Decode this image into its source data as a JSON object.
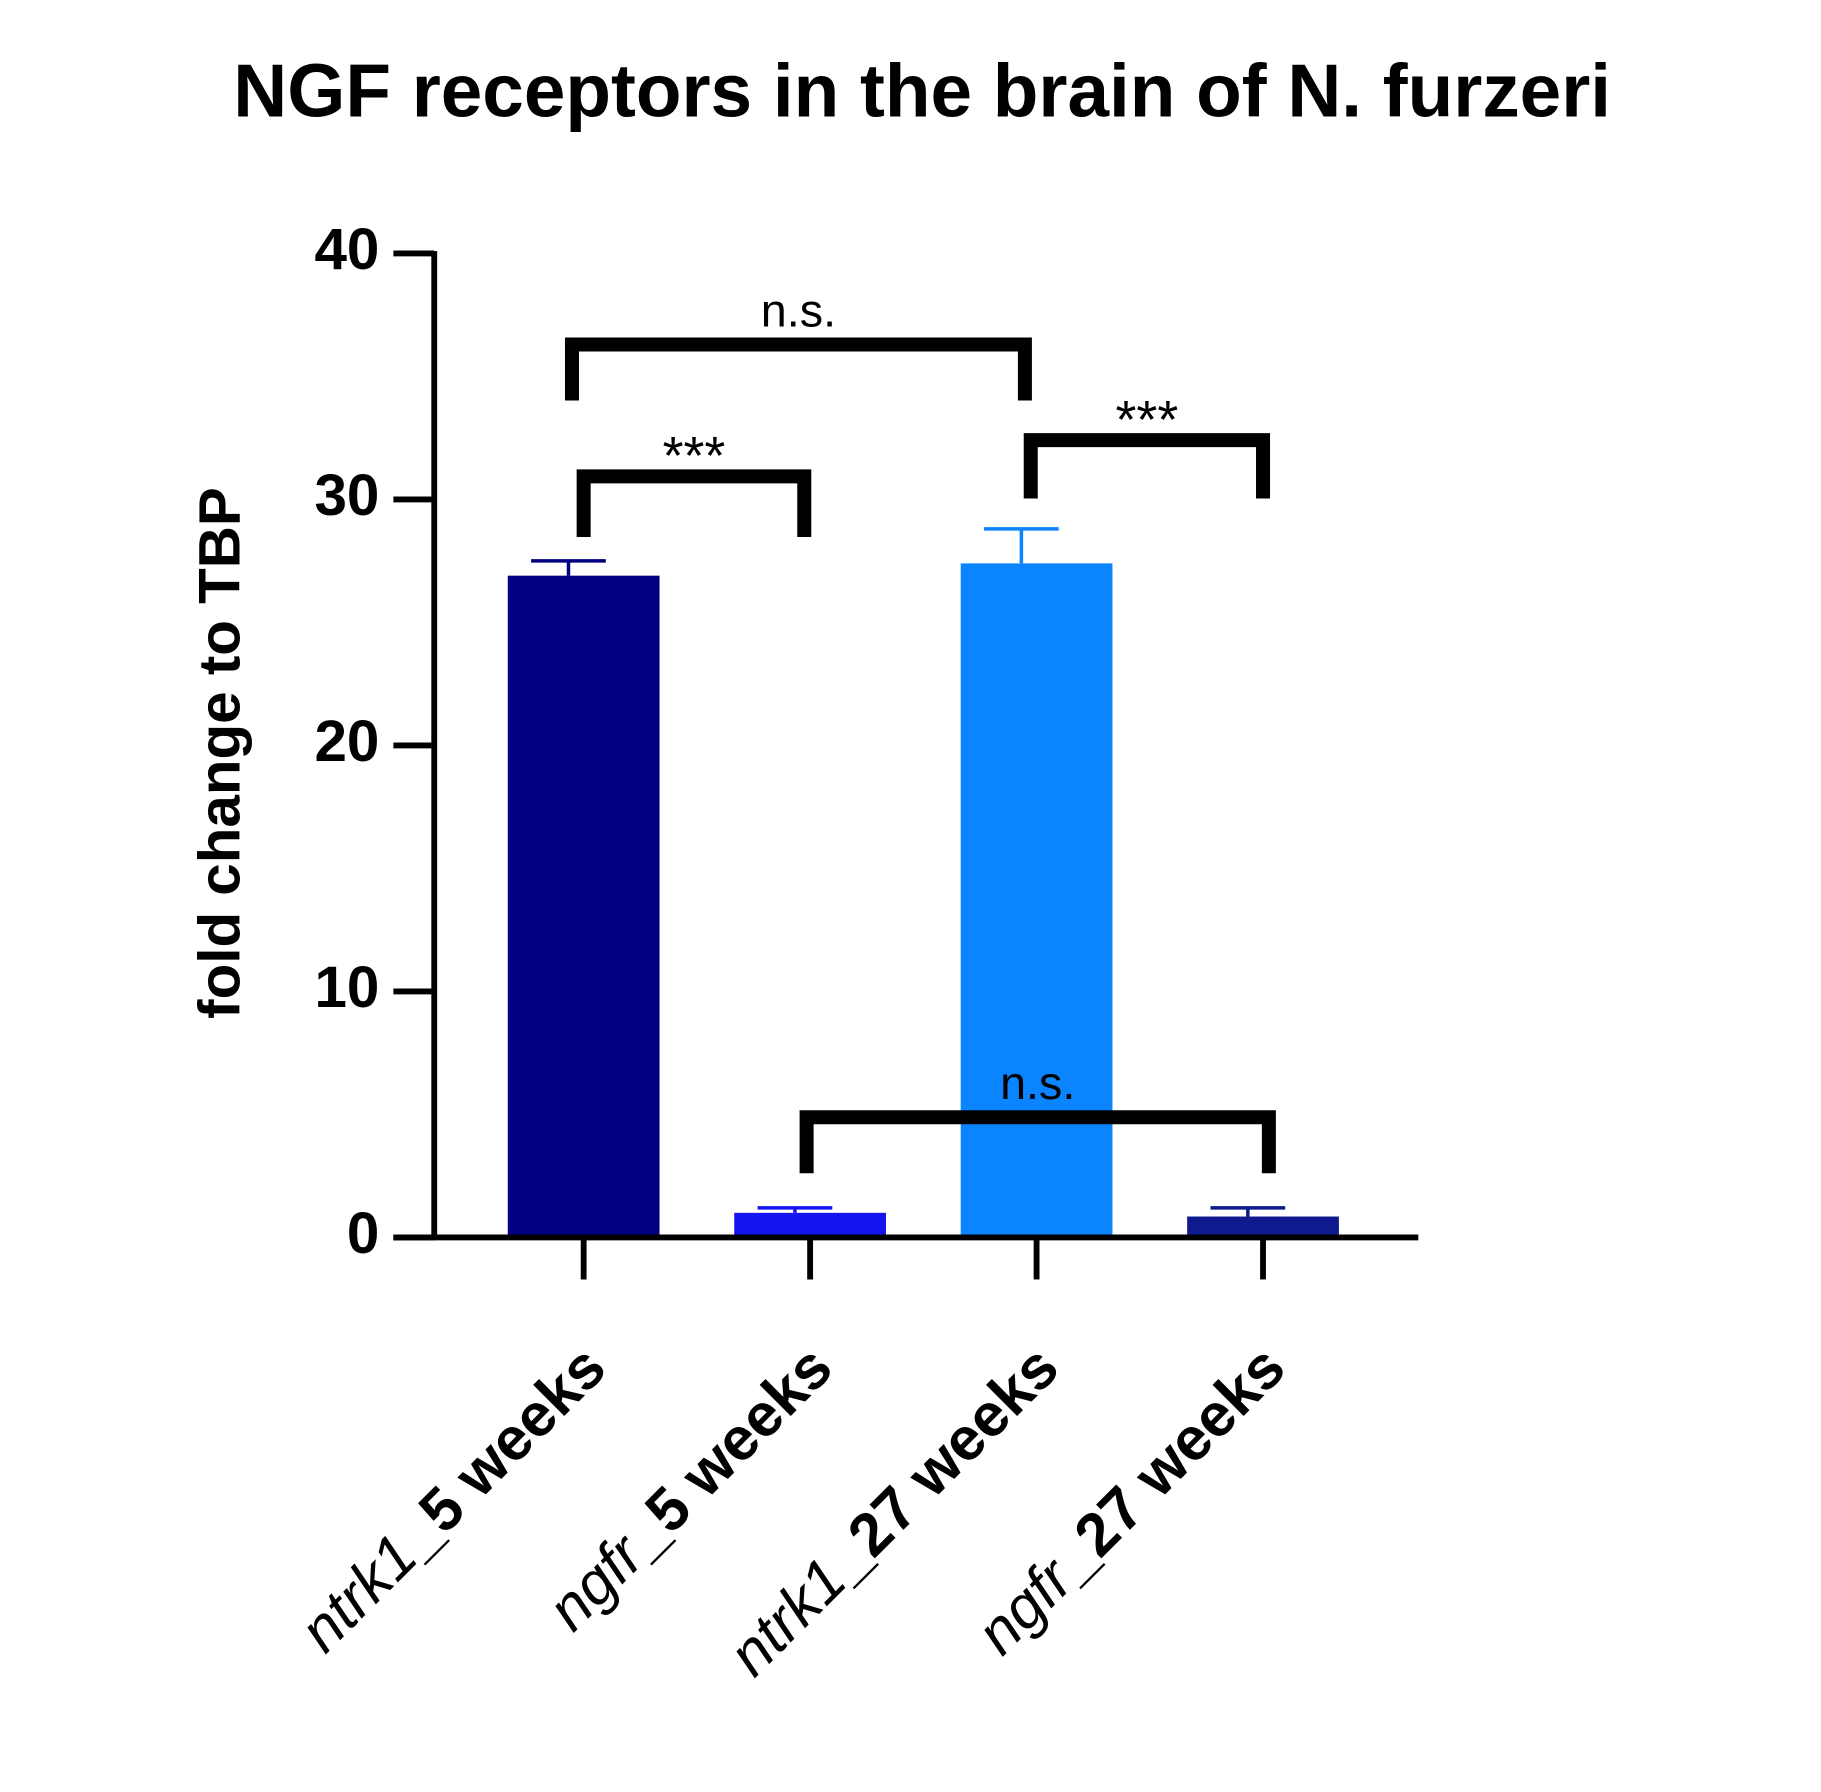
{
  "chart_data": {
    "type": "bar",
    "title": "NGF receptors in the brain of N. furzeri",
    "y_label": "fold change to TBP",
    "categories": [
      "ntrk1_5 weeks",
      "ngfr_5 weeks",
      "ntrk1_27 weeks",
      "ngfr_27 weeks"
    ],
    "values": [
      26.9,
      1.0,
      27.4,
      0.85
    ],
    "errors": [
      0.6,
      0.2,
      1.4,
      0.35
    ],
    "colors": [
      "#000080",
      "#1414f0",
      "#0a84ff",
      "#0f1a8f"
    ],
    "ylim": [
      0,
      40
    ],
    "yticks": [
      0,
      10,
      20,
      30,
      40
    ],
    "annotations": [
      {
        "text": "n.s.",
        "from": 0,
        "to": 2
      },
      {
        "text": "***",
        "from": 0,
        "to": 1
      },
      {
        "text": "***",
        "from": 2,
        "to": 3
      },
      {
        "text": "n.s.",
        "from": 1,
        "to": 3
      }
    ]
  }
}
